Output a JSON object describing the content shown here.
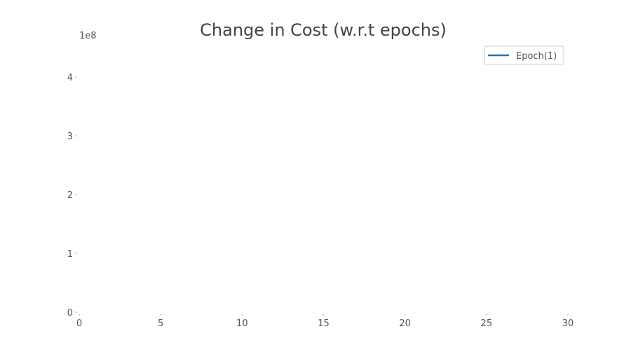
{
  "chart_data": {
    "type": "line",
    "title": "Change in Cost (w.r.t epochs)",
    "xlabel": "",
    "ylabel": "",
    "xlim": [
      0,
      30
    ],
    "ylim": [
      0,
      4.5
    ],
    "x_ticks": [
      "0",
      "5",
      "10",
      "15",
      "20",
      "25",
      "30"
    ],
    "y_ticks": [
      "0",
      "1",
      "2",
      "3",
      "4"
    ],
    "y_offset_label": "1e8",
    "grid": false,
    "legend_position": "top-right",
    "series": [
      {
        "name": "Epoch(1)",
        "color": "#1f77b4",
        "x": [],
        "y": []
      }
    ]
  }
}
